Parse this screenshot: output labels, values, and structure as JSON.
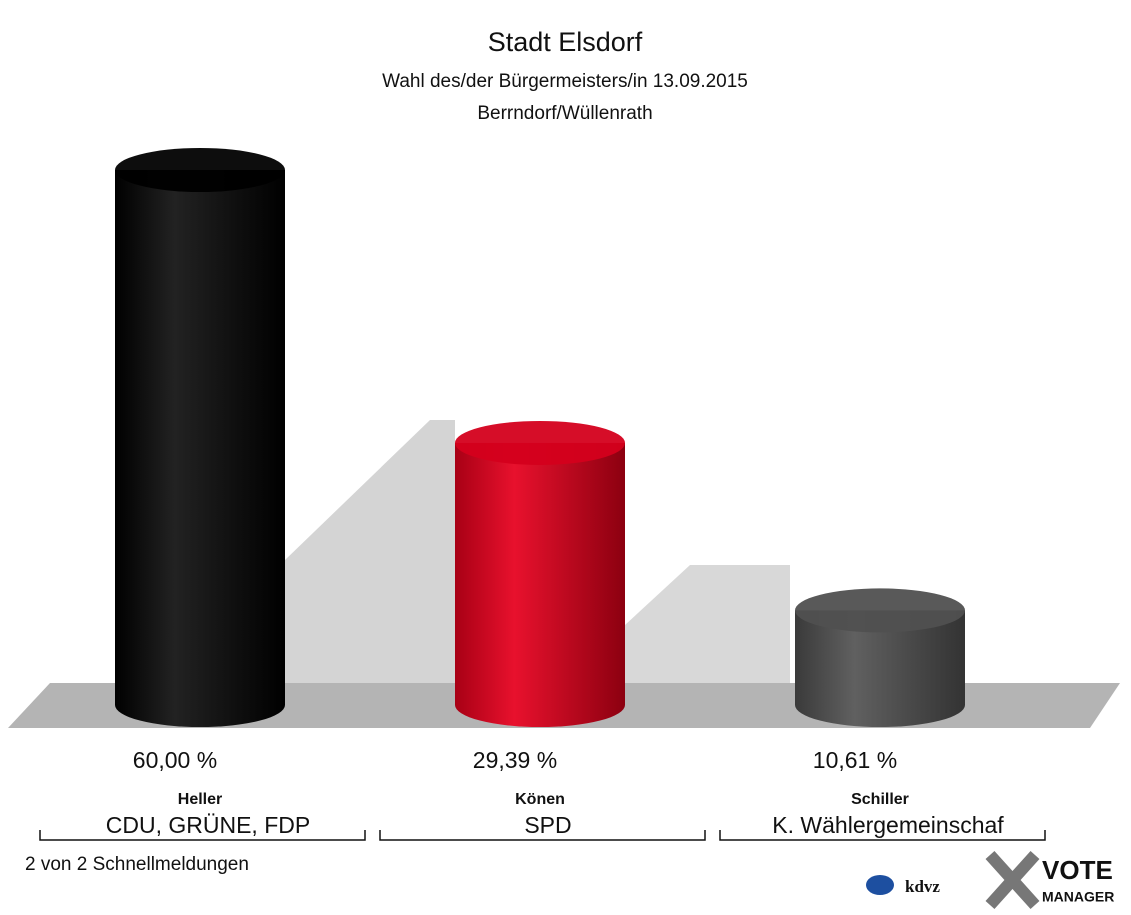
{
  "chart_data": {
    "type": "bar",
    "title": "Stadt Elsdorf",
    "subtitle": [
      "Wahl des/der Bürgermeisters/in 13.09.2015",
      "Berrndorf/Wüllenrath"
    ],
    "categories": [
      "Heller",
      "Könen",
      "Schiller"
    ],
    "parties": [
      "CDU, GRÜNE, FDP",
      "SPD",
      "K. Wählergemeinschaf"
    ],
    "values": [
      60,
      29.39,
      10.61
    ],
    "value_labels": [
      "60,00 %",
      "29,39 %",
      "10,61 %"
    ],
    "colors": [
      "#000000",
      "#d4001c",
      "#505050"
    ],
    "footer": "2 von 2 Schnellmeldungen",
    "logos": [
      "kdvz",
      "VOTE",
      "MANAGER"
    ]
  }
}
